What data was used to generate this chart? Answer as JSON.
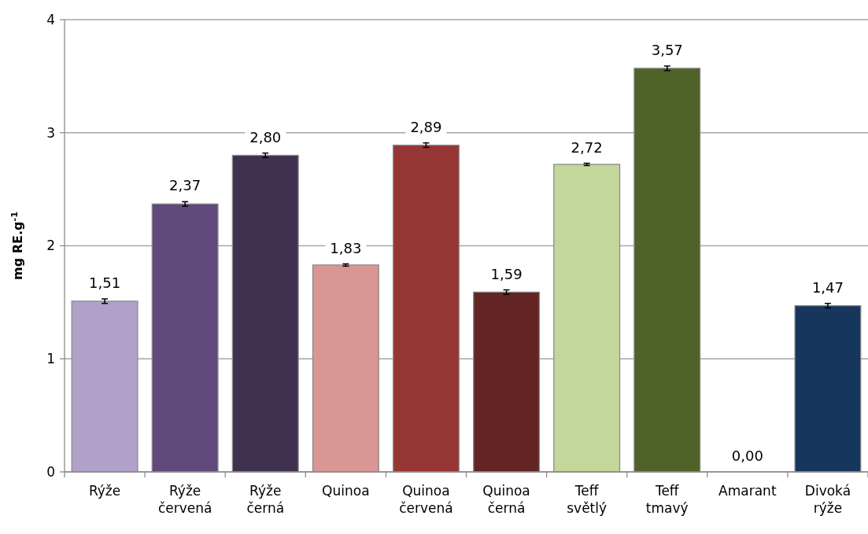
{
  "chart_data": {
    "type": "bar",
    "ylabel": "mg RE.g$^{-1}$",
    "categories": [
      "Rýže",
      "Rýže červená",
      "Rýže černá",
      "Quinoa",
      "Quinoa červená",
      "Quinoa černá",
      "Teff světlý",
      "Teff tmavý",
      "Amarant",
      "Divoká rýže"
    ],
    "values": [
      1.51,
      2.37,
      2.8,
      1.83,
      2.89,
      1.59,
      2.72,
      3.57,
      0.0,
      1.47
    ],
    "errors": [
      0.02,
      0.02,
      0.02,
      0.01,
      0.02,
      0.02,
      0.01,
      0.02,
      null,
      0.02
    ],
    "colors": [
      "#b1a0c7",
      "#604a7b",
      "#403151",
      "#da9694",
      "#963634",
      "#632523",
      "#c4d79b",
      "#4f6228",
      "#808080",
      "#16365c"
    ],
    "value_labels": [
      "1,51",
      "2,37",
      "2,80",
      "1,83",
      "2,89",
      "1,59",
      "2,72",
      "3,57",
      "0,00",
      "1,47"
    ],
    "ylim": [
      0,
      4
    ],
    "yticks": [
      0,
      1,
      2,
      3,
      4
    ],
    "grid": "y"
  }
}
